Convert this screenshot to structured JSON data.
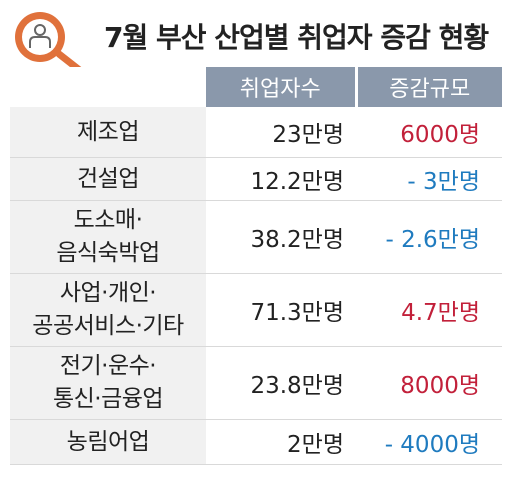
{
  "title": "7월 부산 산업별 취업자 증감 현황",
  "icon": "person-magnifier-icon",
  "colors": {
    "header_bg": "#8a98ab",
    "positive": "#c2203a",
    "negative": "#1f7bbf",
    "icon_orange": "#e0713b",
    "category_bg": "#f1f1f1"
  },
  "columns": [
    "",
    "취업자수",
    "증감규모"
  ],
  "rows": [
    {
      "category": [
        "제조업"
      ],
      "employed": "23만명",
      "change": "6000명",
      "sign": "positive"
    },
    {
      "category": [
        "건설업"
      ],
      "employed": "12.2만명",
      "change": "- 3만명",
      "sign": "negative"
    },
    {
      "category": [
        "도소매·",
        "음식숙박업"
      ],
      "employed": "38.2만명",
      "change": "- 2.6만명",
      "sign": "negative"
    },
    {
      "category": [
        "사업·개인·",
        "공공서비스·기타"
      ],
      "employed": "71.3만명",
      "change": "4.7만명",
      "sign": "positive"
    },
    {
      "category": [
        "전기·운수·",
        "통신·금융업"
      ],
      "employed": "23.8만명",
      "change": "8000명",
      "sign": "positive"
    },
    {
      "category": [
        "농림어업"
      ],
      "employed": "2만명",
      "change": "- 4000명",
      "sign": "negative"
    }
  ]
}
